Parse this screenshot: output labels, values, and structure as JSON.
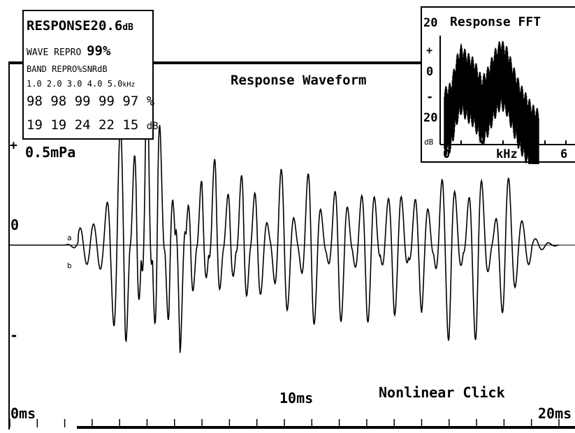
{
  "stats": {
    "response_label": "RESPONSE",
    "response_value": "20.6",
    "response_unit": "dB",
    "wave_repro_label": "WAVE REPRO",
    "wave_repro_value": "99%",
    "band_label": "BAND REPRO%SNR",
    "band_unit": "dB",
    "freqs": [
      "1.0",
      "2.0",
      "3.0",
      "4.0",
      "5.0"
    ],
    "freq_unit": "kHz",
    "repro_values": [
      "98",
      "98",
      "99",
      "99",
      "97"
    ],
    "repro_unit": "%",
    "snr_values": [
      "19",
      "19",
      "24",
      "22",
      "15"
    ],
    "snr_unit": "dB"
  },
  "waveform": {
    "title": "Response Waveform",
    "scale_label": "0.5mPa",
    "plus_label": "+",
    "zero_label": "0",
    "minus_label": "-",
    "x_start_label": "0ms",
    "x_mid_label": "10ms",
    "x_end_label": "20ms",
    "annotation": "Nonlinear Click",
    "marker_a": "a",
    "marker_b": "b"
  },
  "fft": {
    "title": "Response FFT",
    "y_top_label": "20",
    "y_plus_label": "+",
    "y_zero_label": "0",
    "y_minus_label": "-",
    "y_bottom_label": "20",
    "y_unit_label": "dB",
    "x_start_label": "0",
    "x_unit_label": "kHz",
    "x_end_label": "6"
  },
  "chart_data": [
    {
      "type": "line",
      "title": "Response Waveform",
      "xlabel": "ms",
      "ylabel": "mPa",
      "xlim": [
        0,
        20
      ],
      "ylim": [
        -1.5,
        1.5
      ],
      "grid": false,
      "annotations": [
        "Nonlinear Click",
        "0.5mPa"
      ],
      "series": [
        {
          "x": [
            0,
            2.0,
            2.8,
            3.4,
            3.7,
            4.2,
            4.6,
            5.0,
            5.4,
            5.8,
            6.2,
            6.6,
            7.0,
            7.5,
            8.0,
            8.5,
            9.0,
            10.0,
            11.0,
            12.0,
            13.0,
            14.0,
            15.0,
            16.0,
            17.0,
            18.0,
            18.6,
            19.0,
            20.0
          ],
          "y": [
            0,
            0,
            0.05,
            0.15,
            0.35,
            0.95,
            -1.05,
            1.2,
            -1.3,
            0.8,
            -0.65,
            0.55,
            -0.55,
            0.6,
            -0.5,
            0.55,
            -0.5,
            0.55,
            -0.55,
            0.5,
            -0.55,
            0.55,
            -0.5,
            0.65,
            -0.6,
            0.45,
            0.15,
            0.05,
            0
          ]
        }
      ]
    },
    {
      "type": "line",
      "title": "Response FFT",
      "xlabel": "kHz",
      "ylabel": "dB",
      "xlim": [
        0,
        6
      ],
      "ylim": [
        -20,
        20
      ],
      "grid": false,
      "series": [
        {
          "x": [
            0.2,
            0.5,
            0.8,
            1.0,
            1.3,
            1.6,
            2.0,
            2.3,
            2.6,
            2.9,
            3.2,
            3.5,
            3.8,
            4.1,
            4.4,
            4.7
          ],
          "y": [
            -10,
            -8,
            2,
            6,
            3,
            1,
            -6,
            -2,
            4,
            8,
            5,
            -2,
            -8,
            -12,
            -16,
            -18
          ]
        }
      ]
    }
  ]
}
